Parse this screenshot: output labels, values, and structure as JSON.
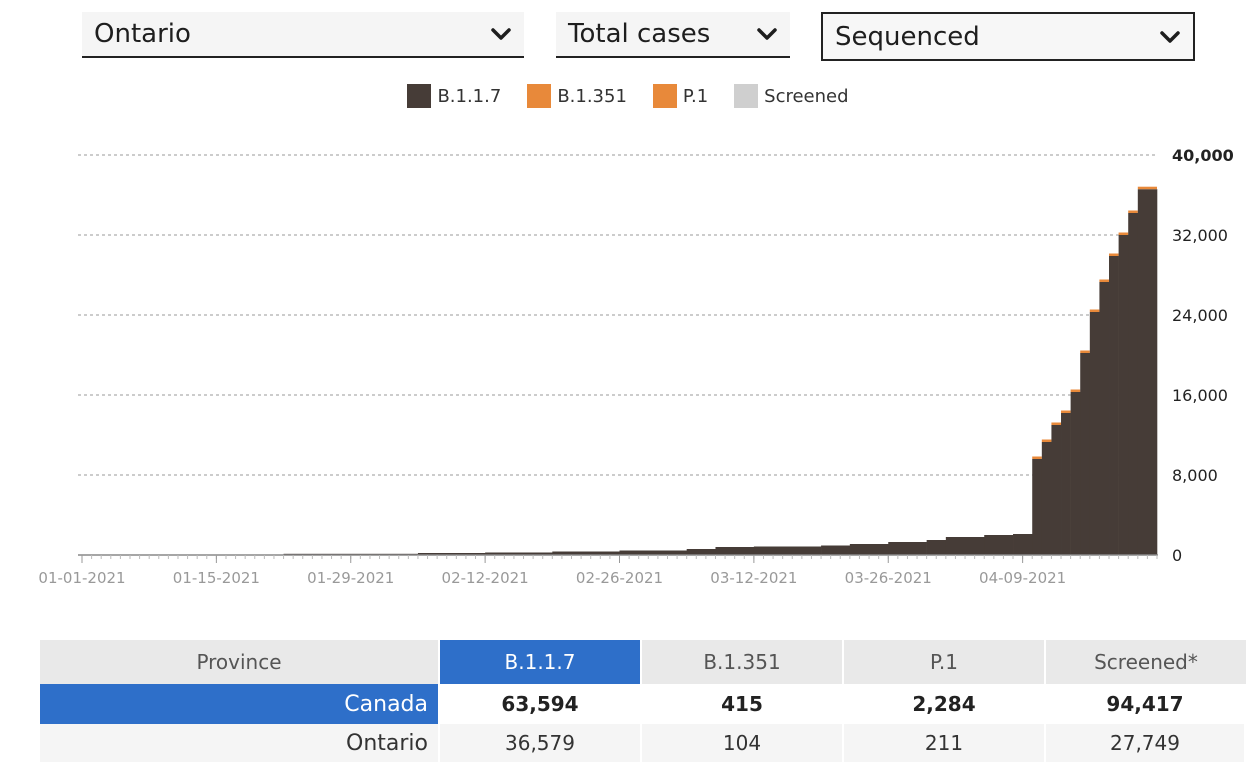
{
  "controls": {
    "region": "Ontario",
    "measure": "Total cases",
    "type": "Sequenced"
  },
  "legend": [
    {
      "label": "B.1.1.7",
      "color": "#463c37"
    },
    {
      "label": "B.1.351",
      "color": "#e8893a"
    },
    {
      "label": "P.1",
      "color": "#e8893a"
    },
    {
      "label": "Screened",
      "color": "#cfcfcf"
    }
  ],
  "chart_data": {
    "type": "area",
    "stacked": true,
    "step": true,
    "x": [
      "01-01-2021",
      "01-15-2021",
      "01-29-2021",
      "02-12-2021",
      "02-26-2021",
      "03-12-2021",
      "03-26-2021",
      "04-09-2021",
      "04-12-2021",
      "04-13-2021",
      "04-14-2021",
      "04-15-2021",
      "04-16-2021",
      "04-17-2021",
      "04-18-2021",
      "04-19-2021",
      "04-20-2021",
      "04-21-2021",
      "04-22-2021",
      "04-23-2021"
    ],
    "x_ticks": [
      "01-01-2021",
      "01-15-2021",
      "01-29-2021",
      "02-12-2021",
      "02-26-2021",
      "03-12-2021",
      "03-26-2021",
      "04-09-2021"
    ],
    "series": [
      {
        "name": "B.1.1.7",
        "color": "#463c37",
        "x": [
          "01-01-2021",
          "01-08-2021",
          "01-22-2021",
          "02-05-2021",
          "02-12-2021",
          "02-19-2021",
          "02-26-2021",
          "03-05-2021",
          "03-08-2021",
          "03-12-2021",
          "03-19-2021",
          "03-22-2021",
          "03-26-2021",
          "03-30-2021",
          "04-01-2021",
          "04-05-2021",
          "04-08-2021",
          "04-10-2021",
          "04-11-2021",
          "04-12-2021",
          "04-13-2021",
          "04-14-2021",
          "04-15-2021",
          "04-16-2021",
          "04-17-2021",
          "04-18-2021",
          "04-19-2021",
          "04-20-2021",
          "04-21-2021"
        ],
        "values": [
          0,
          50,
          120,
          200,
          250,
          350,
          450,
          600,
          800,
          850,
          950,
          1100,
          1300,
          1500,
          1800,
          2000,
          2100,
          9600,
          11300,
          13000,
          14200,
          16300,
          20200,
          24300,
          27300,
          29900,
          32000,
          34200,
          36579
        ]
      },
      {
        "name": "B.1.351",
        "values_total": 104
      },
      {
        "name": "P.1",
        "values_total": 211
      }
    ],
    "ylim": [
      0,
      40000
    ],
    "yticks": [
      "0",
      "8,000",
      "16,000",
      "24,000",
      "32,000",
      "40,000"
    ],
    "grid": true,
    "legend_position": "top-center"
  },
  "table": {
    "headers": [
      "Province",
      "B.1.1.7",
      "B.1.351",
      "P.1",
      "Screened*"
    ],
    "rows": [
      [
        "Canada",
        "63,594",
        "415",
        "2,284",
        "94,417"
      ],
      [
        "Ontario",
        "36,579",
        "104",
        "211",
        "27,749"
      ]
    ]
  }
}
